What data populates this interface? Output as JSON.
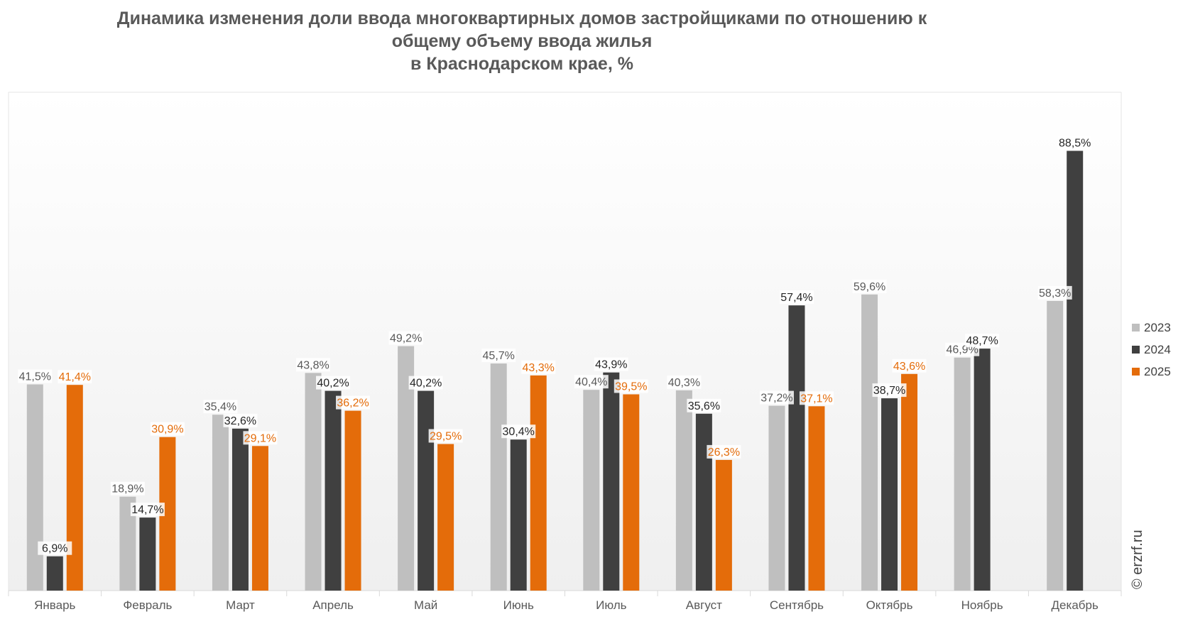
{
  "chart_data": {
    "type": "bar",
    "title_lines": [
      "Динамика изменения доли ввода многоквартирных домов застройщиками по отношению к",
      "общему объему ввода жилья",
      "в Краснодарском крае, %"
    ],
    "categories": [
      "Январь",
      "Февраль",
      "Март",
      "Апрель",
      "Май",
      "Июнь",
      "Июль",
      "Август",
      "Сентябрь",
      "Октябрь",
      "Ноябрь",
      "Декабрь"
    ],
    "series": [
      {
        "name": "2023",
        "color": "#bfbfbf",
        "label_color": "#595959",
        "values": [
          41.5,
          18.9,
          35.4,
          43.8,
          49.2,
          45.7,
          40.4,
          40.3,
          37.2,
          59.6,
          46.9,
          58.3
        ],
        "labels": [
          "41,5%",
          "18,9%",
          "35,4%",
          "43,8%",
          "49,2%",
          "45,7%",
          "40,4%",
          "40,3%",
          "37,2%",
          "59,6%",
          "46,9%",
          "58,3%"
        ]
      },
      {
        "name": "2024",
        "color": "#404040",
        "label_color": "#262626",
        "values": [
          6.9,
          14.7,
          32.6,
          40.2,
          40.2,
          30.4,
          43.9,
          35.6,
          57.4,
          38.7,
          48.7,
          88.5
        ],
        "labels": [
          "6,9%",
          "14,7%",
          "32,6%",
          "40,2%",
          "40,2%",
          "30,4%",
          "43,9%",
          "35,6%",
          "57,4%",
          "38,7%",
          "48,7%",
          "88,5%"
        ]
      },
      {
        "name": "2025",
        "color": "#e46c0a",
        "label_color": "#e46c0a",
        "values": [
          41.4,
          30.9,
          29.1,
          36.2,
          29.5,
          43.3,
          39.5,
          26.3,
          37.1,
          43.6,
          null,
          null
        ],
        "labels": [
          "41,4%",
          "30,9%",
          "29,1%",
          "36,2%",
          "29,5%",
          "43,3%",
          "39,5%",
          "26,3%",
          "37,1%",
          "43,6%",
          "",
          ""
        ]
      }
    ],
    "ylim": [
      0,
      100
    ],
    "grid": false,
    "legend_position": "right",
    "watermark": "© erzrf.ru"
  }
}
